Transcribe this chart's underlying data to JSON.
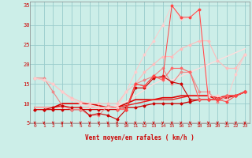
{
  "bg_color": "#cceee8",
  "grid_color": "#99cccc",
  "xlabel": "Vent moyen/en rafales ( km/h )",
  "xlabel_color": "#cc0000",
  "tick_color": "#cc0000",
  "arrow_color": "#cc0000",
  "xlim": [
    -0.5,
    23.5
  ],
  "ylim": [
    5,
    36
  ],
  "yticks": [
    5,
    10,
    15,
    20,
    25,
    30,
    35
  ],
  "xticks": [
    0,
    1,
    2,
    3,
    4,
    5,
    6,
    7,
    8,
    9,
    10,
    11,
    12,
    13,
    14,
    15,
    16,
    17,
    18,
    19,
    20,
    21,
    22,
    23
  ],
  "lines": [
    {
      "x": [
        0,
        1,
        2,
        3,
        4,
        5,
        6,
        7,
        8,
        9,
        10,
        11,
        12,
        13,
        14,
        15,
        16,
        17,
        18,
        19,
        20,
        21,
        22,
        23
      ],
      "y": [
        8.5,
        8.5,
        8.5,
        8.5,
        8.5,
        8.5,
        8.5,
        8.5,
        8.5,
        8.5,
        9,
        9,
        9.5,
        10,
        10,
        10,
        10,
        10.5,
        11,
        11,
        11,
        11.5,
        12,
        13
      ],
      "color": "#cc0000",
      "lw": 0.9,
      "marker": "D",
      "ms": 1.5
    },
    {
      "x": [
        0,
        1,
        2,
        3,
        4,
        5,
        6,
        7,
        8,
        9,
        10,
        11,
        12,
        13,
        14,
        15,
        16,
        17,
        18,
        19,
        20,
        21,
        22,
        23
      ],
      "y": [
        16.5,
        16.5,
        13,
        9.5,
        8.5,
        8.5,
        7,
        7,
        9.5,
        9,
        8.5,
        15,
        16,
        17,
        19,
        15,
        18,
        18,
        13,
        13,
        10.5,
        12,
        12,
        13
      ],
      "color": "#ee8888",
      "lw": 0.8,
      "marker": "D",
      "ms": 1.5
    },
    {
      "x": [
        0,
        1,
        2,
        3,
        4,
        5,
        6,
        7,
        8,
        9,
        10,
        11,
        12,
        13,
        14,
        15,
        16,
        17,
        18,
        19,
        20,
        21,
        22,
        23
      ],
      "y": [
        8.5,
        8.5,
        9,
        9.5,
        9,
        9,
        7,
        7.5,
        7,
        6,
        8.5,
        14,
        14,
        16.5,
        17,
        15.5,
        15,
        11,
        11,
        11,
        11,
        12,
        12,
        13
      ],
      "color": "#cc0000",
      "lw": 0.8,
      "marker": "D",
      "ms": 1.5
    },
    {
      "x": [
        0,
        1,
        2,
        3,
        4,
        5,
        6,
        7,
        8,
        9,
        10,
        11,
        12,
        13,
        14,
        15,
        16,
        17,
        18,
        19,
        20,
        21,
        22,
        23
      ],
      "y": [
        9,
        9,
        9,
        10,
        10,
        10,
        10,
        9.5,
        9,
        9,
        10,
        11,
        11,
        11,
        11.5,
        11.5,
        12,
        12,
        12,
        12,
        11,
        12,
        12,
        13
      ],
      "color": "#dd0000",
      "lw": 1.2,
      "marker": null,
      "ms": 0
    },
    {
      "x": [
        0,
        1,
        2,
        3,
        4,
        5,
        6,
        7,
        8,
        9,
        10,
        11,
        12,
        13,
        14,
        15,
        16,
        17,
        18,
        19,
        20,
        21,
        22,
        23
      ],
      "y": [
        9,
        9,
        9,
        9,
        9,
        9,
        9,
        9,
        9,
        9,
        9.5,
        10,
        10.5,
        11,
        11,
        11,
        11.5,
        12,
        12,
        12,
        11.5,
        12,
        12,
        13
      ],
      "color": "#ee2222",
      "lw": 1.0,
      "marker": null,
      "ms": 0
    },
    {
      "x": [
        0,
        1,
        2,
        3,
        4,
        5,
        6,
        7,
        8,
        9,
        10,
        11,
        12,
        13,
        14,
        15,
        16,
        17,
        18,
        19,
        20,
        21,
        22,
        23
      ],
      "y": [
        16.5,
        16,
        15,
        13,
        11.5,
        10.5,
        10,
        10,
        10,
        10,
        13,
        15,
        18,
        20,
        22,
        22,
        24,
        25,
        26,
        26,
        21,
        19,
        19,
        22.5
      ],
      "color": "#ffbbbb",
      "lw": 0.8,
      "marker": "D",
      "ms": 1.5
    },
    {
      "x": [
        0,
        1,
        2,
        3,
        4,
        5,
        6,
        7,
        8,
        9,
        10,
        11,
        12,
        13,
        14,
        15,
        16,
        17,
        18,
        19,
        20,
        21,
        22,
        23
      ],
      "y": [
        16.5,
        16,
        15,
        13,
        11,
        10,
        9.5,
        9,
        9,
        9,
        13,
        18,
        22.5,
        26,
        30,
        35,
        31.5,
        32,
        34,
        12,
        12,
        11,
        17.5,
        22.5
      ],
      "color": "#ffcccc",
      "lw": 0.7,
      "marker": "D",
      "ms": 1.5
    },
    {
      "x": [
        0,
        1,
        2,
        3,
        4,
        5,
        6,
        7,
        8,
        9,
        10,
        11,
        12,
        13,
        14,
        15,
        16,
        17,
        18,
        19,
        20,
        21,
        22,
        23
      ],
      "y": [
        9,
        9,
        9,
        9,
        9,
        9,
        9,
        9,
        9,
        9.5,
        10.5,
        12,
        13.5,
        15,
        16,
        16,
        17,
        18,
        19,
        20,
        21,
        22,
        23,
        24
      ],
      "color": "#ffdddd",
      "lw": 1.0,
      "marker": null,
      "ms": 0
    },
    {
      "x": [
        9,
        10,
        11,
        12,
        13,
        14,
        15,
        16,
        17,
        18,
        19,
        20,
        21,
        22,
        23
      ],
      "y": [
        8.5,
        8.5,
        15,
        14.5,
        17,
        16,
        19,
        19,
        18,
        11,
        11,
        11,
        12,
        12,
        13
      ],
      "color": "#ff6666",
      "lw": 0.8,
      "marker": "D",
      "ms": 1.5
    },
    {
      "x": [
        10,
        11,
        12,
        13,
        14,
        15,
        16,
        17,
        18,
        19,
        20,
        21,
        22,
        23
      ],
      "y": [
        8.5,
        15,
        14.5,
        17,
        16.5,
        35,
        32,
        32,
        34,
        11,
        11,
        10.5,
        12,
        13
      ],
      "color": "#ff4444",
      "lw": 0.7,
      "marker": "D",
      "ms": 1.5
    }
  ]
}
